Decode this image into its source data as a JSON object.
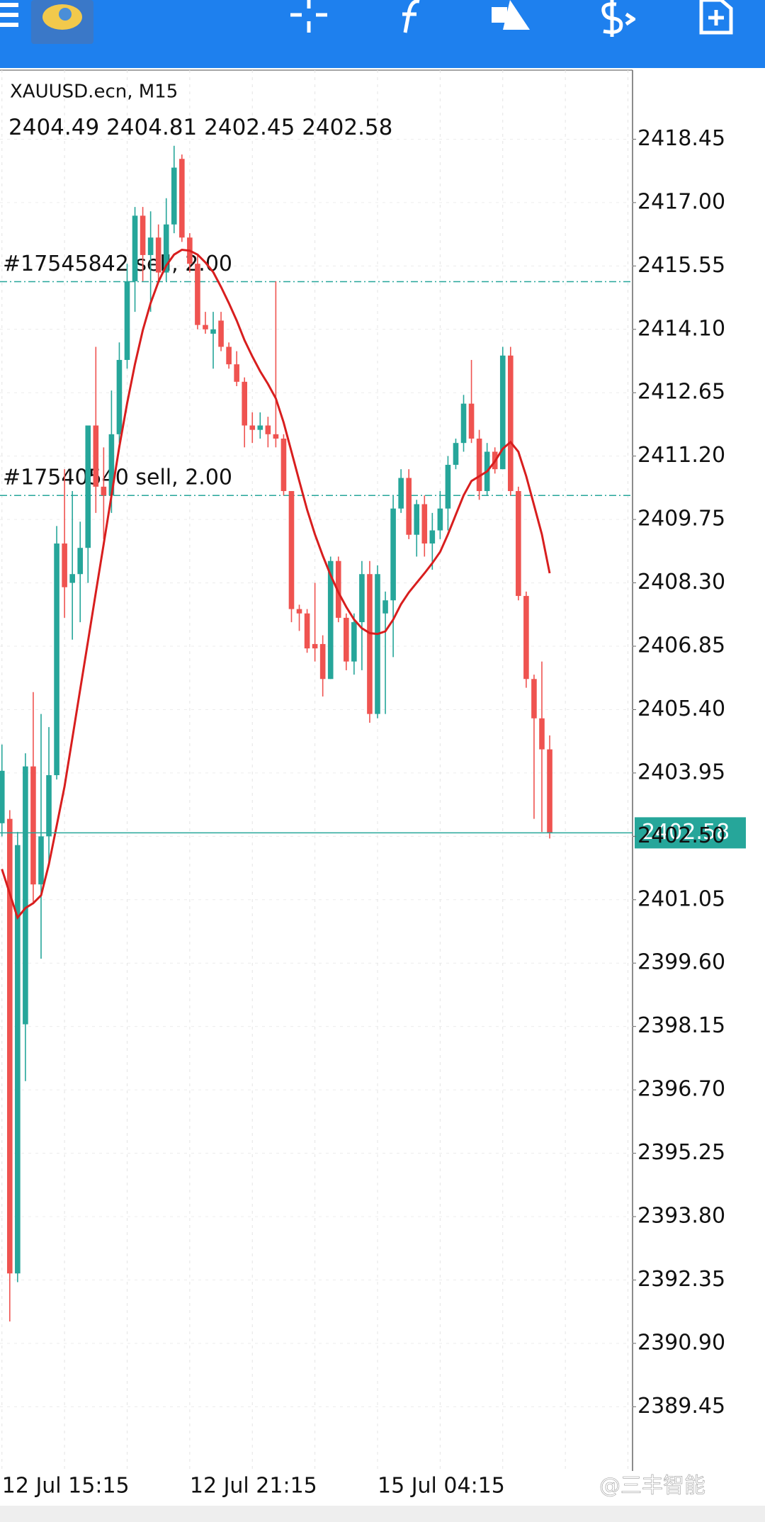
{
  "chart_data": {
    "type": "candlestick",
    "title": "XAUUSD.ecn, M15",
    "categories": [
      "12 Jul 15:15",
      null,
      null,
      null,
      null,
      null,
      null,
      null,
      null,
      null,
      null,
      null,
      null,
      null,
      null,
      null,
      null,
      null,
      null,
      null,
      null,
      null,
      null,
      null,
      "12 Jul 21:15",
      null,
      null,
      null,
      null,
      null,
      null,
      null,
      null,
      null,
      null,
      null,
      null,
      null,
      null,
      null,
      null,
      null,
      null,
      null,
      null,
      null,
      null,
      null,
      "15 Jul 04:15",
      null,
      null,
      null,
      null,
      null,
      null,
      null,
      null,
      null,
      null,
      null,
      null,
      null,
      null,
      null,
      null,
      null,
      null,
      null,
      null,
      null,
      null
    ],
    "open": [
      2402.8,
      2402.9,
      2392.5,
      2398.2,
      2404.1,
      2401.4,
      2402.5,
      2403.9,
      2409.2,
      2408.3,
      2408.5,
      2409.1,
      2411.9,
      2410.5,
      2410.3,
      2411.7,
      2413.4,
      2415.2,
      2416.7,
      2415.8,
      2416.2,
      2415.4,
      2416.5,
      2418.0,
      2416.2,
      2415.6,
      2414.2,
      2414.0,
      2414.3,
      2413.7,
      2413.3,
      2412.9,
      2411.9,
      2411.8,
      2411.9,
      2411.7,
      2411.6,
      2410.4,
      2407.7,
      2407.6,
      2406.9,
      2406.9,
      2406.1,
      2408.8,
      2407.5,
      2406.5,
      2407.4,
      2408.5,
      2405.3,
      2407.6,
      2407.9,
      2410.0,
      2410.7,
      2409.4,
      2410.1,
      2409.2,
      2409.5,
      2410.0,
      2411.0,
      2411.5,
      2412.4,
      2411.6,
      2410.4,
      2411.3,
      2410.9,
      2413.5,
      2410.4,
      2408.0,
      2406.1,
      2405.2,
      2404.49
    ],
    "high": [
      2404.6,
      2403.1,
      2402.6,
      2404.4,
      2405.8,
      2405.3,
      2405.0,
      2409.6,
      2410.9,
      2410.4,
      2409.7,
      2411.9,
      2413.7,
      2411.4,
      2412.7,
      2413.8,
      2415.6,
      2416.9,
      2416.9,
      2416.8,
      2416.5,
      2417.1,
      2418.3,
      2418.1,
      2416.3,
      2415.8,
      2414.5,
      2414.5,
      2414.5,
      2413.8,
      2413.6,
      2413.0,
      2412.2,
      2412.2,
      2412.1,
      2415.2,
      2411.7,
      2410.4,
      2407.8,
      2407.7,
      2408.3,
      2407.1,
      2408.9,
      2408.9,
      2407.6,
      2407.6,
      2408.8,
      2408.8,
      2408.7,
      2408.1,
      2410.3,
      2410.9,
      2410.9,
      2410.2,
      2410.3,
      2409.9,
      2410.4,
      2411.2,
      2411.6,
      2412.6,
      2413.4,
      2411.8,
      2411.5,
      2411.4,
      2413.7,
      2413.7,
      2410.5,
      2408.1,
      2406.2,
      2406.5,
      2404.81
    ],
    "low": [
      2402.5,
      2391.4,
      2392.3,
      2396.9,
      2401.0,
      2399.7,
      2401.9,
      2403.8,
      2407.5,
      2407.0,
      2407.4,
      2408.3,
      2409.9,
      2409.3,
      2409.9,
      2411.5,
      2413.2,
      2414.5,
      2415.2,
      2414.5,
      2415.2,
      2415.2,
      2416.3,
      2416.1,
      2415.4,
      2414.1,
      2414.0,
      2413.2,
      2413.6,
      2413.2,
      2412.8,
      2411.4,
      2411.5,
      2411.6,
      2411.4,
      2411.4,
      2410.3,
      2407.4,
      2407.2,
      2406.7,
      2406.5,
      2405.7,
      2406.1,
      2407.4,
      2406.3,
      2406.2,
      2406.3,
      2405.1,
      2405.2,
      2405.3,
      2406.6,
      2409.9,
      2409.3,
      2408.9,
      2408.9,
      2408.6,
      2409.3,
      2409.5,
      2410.9,
      2411.3,
      2411.5,
      2410.2,
      2410.3,
      2410.8,
      2410.9,
      2410.3,
      2407.9,
      2405.9,
      2402.9,
      2402.6,
      2402.45
    ],
    "close": [
      2404.0,
      2392.5,
      2402.3,
      2404.1,
      2401.4,
      2402.5,
      2403.9,
      2409.2,
      2408.2,
      2408.5,
      2409.1,
      2411.9,
      2410.5,
      2410.3,
      2411.7,
      2413.4,
      2415.2,
      2416.7,
      2415.8,
      2416.2,
      2415.4,
      2416.5,
      2417.8,
      2416.2,
      2415.6,
      2414.2,
      2414.1,
      2414.1,
      2413.7,
      2413.3,
      2412.9,
      2411.9,
      2411.8,
      2411.9,
      2411.7,
      2411.6,
      2410.4,
      2407.7,
      2407.6,
      2406.8,
      2406.8,
      2406.1,
      2408.8,
      2407.5,
      2406.5,
      2407.4,
      2408.5,
      2405.3,
      2408.5,
      2407.9,
      2410.0,
      2410.7,
      2409.4,
      2410.1,
      2409.2,
      2409.5,
      2410.0,
      2411.0,
      2411.5,
      2412.4,
      2411.6,
      2410.4,
      2411.3,
      2410.9,
      2413.5,
      2410.4,
      2408.0,
      2406.1,
      2405.2,
      2404.49,
      2402.58
    ],
    "up_color": "#26a69a",
    "down_color": "#ef5350",
    "ma": {
      "color": "#d81e1e",
      "values": [
        2401.75,
        2401.19,
        2400.64,
        2400.86,
        2400.97,
        2401.15,
        2401.86,
        2402.75,
        2403.64,
        2404.75,
        2405.86,
        2406.97,
        2408.08,
        2409.19,
        2410.3,
        2411.41,
        2412.41,
        2413.3,
        2414.08,
        2414.7,
        2415.19,
        2415.56,
        2415.81,
        2415.92,
        2415.9,
        2415.81,
        2415.63,
        2415.41,
        2415.07,
        2414.7,
        2414.3,
        2413.85,
        2413.48,
        2413.14,
        2412.85,
        2412.52,
        2411.97,
        2411.3,
        2410.63,
        2409.97,
        2409.41,
        2408.92,
        2408.48,
        2408.08,
        2407.75,
        2407.46,
        2407.26,
        2407.15,
        2407.13,
        2407.19,
        2407.46,
        2407.81,
        2408.08,
        2408.3,
        2408.52,
        2408.75,
        2409.01,
        2409.41,
        2409.86,
        2410.3,
        2410.63,
        2410.74,
        2410.85,
        2411.08,
        2411.37,
        2411.52,
        2411.3,
        2410.74,
        2410.08,
        2409.41,
        2408.52
      ]
    },
    "orders": [
      {
        "label": "#17545842 sell, 2.00",
        "value": 2415.19,
        "color": "#26a69a"
      },
      {
        "label": "#17540540 sell, 2.00",
        "value": 2410.3,
        "color": "#26a69a"
      }
    ],
    "ylim": [
      2387.98,
      2420.03
    ],
    "yticks": [
      2418.45,
      {
        "value": 2417,
        "label": "2417.00"
      },
      2415.55,
      {
        "value": 2414.1,
        "label": "2414.10"
      },
      2412.65,
      {
        "value": 2411.2,
        "label": "2411.20"
      },
      2409.75,
      {
        "value": 2408.3,
        "label": "2408.30"
      },
      2406.85,
      {
        "value": 2405.4,
        "label": "2405.40"
      },
      2403.95,
      {
        "value": 2402.5,
        "label": "2402.50"
      },
      2401.05,
      {
        "value": 2399.6,
        "label": "2399.60"
      },
      2398.15,
      {
        "value": 2396.7,
        "label": "2396.70"
      },
      2395.25,
      {
        "value": 2393.8,
        "label": "2393.80"
      },
      2392.35,
      {
        "value": 2390.9,
        "label": "2390.90"
      },
      2389.45
    ],
    "grid": true
  },
  "watermark": "@三丰智能"
}
